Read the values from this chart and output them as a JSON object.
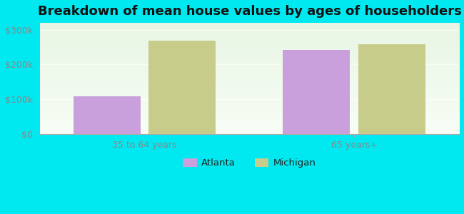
{
  "title": "Breakdown of mean house values by ages of householders",
  "categories": [
    "35 to 64 years",
    "65 years+"
  ],
  "series": {
    "Atlanta": [
      108000,
      242000
    ],
    "Michigan": [
      268000,
      258000
    ]
  },
  "colors": {
    "Atlanta": "#c9a0dc",
    "Michigan": "#c8cc8a"
  },
  "ylim": [
    0,
    320000
  ],
  "yticks": [
    0,
    100000,
    200000,
    300000
  ],
  "ytick_labels": [
    "$0",
    "$100k",
    "$200k",
    "$300k"
  ],
  "background_color": "#00e8f0",
  "plot_bg_color_top": "#e8f5e4",
  "plot_bg_color_bottom": "#f8fef6",
  "bar_width": 0.32,
  "legend_labels": [
    "Atlanta",
    "Michigan"
  ],
  "title_fontsize": 13,
  "tick_color": "#888888",
  "tick_fontsize": 9
}
